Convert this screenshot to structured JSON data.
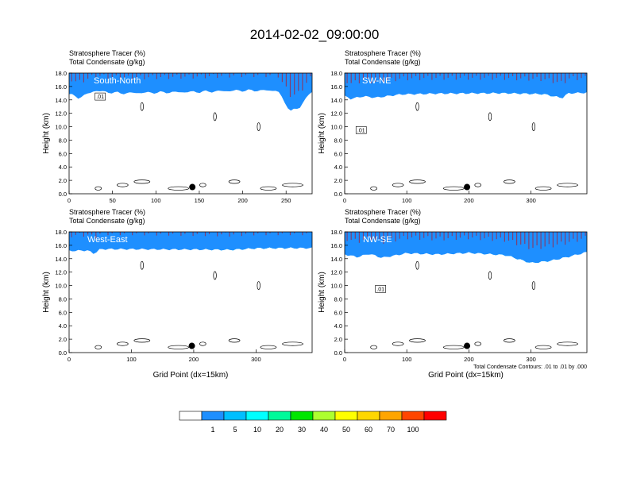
{
  "title": "2014-02-02_09:00:00",
  "panel_header_line1": "Stratosphere Tracer   (%)",
  "panel_header_line2": "Total Condensate   (g/kg)",
  "ylabel": "Height (km)",
  "xlabel": "Grid Point (dx=15km)",
  "contour_note": "Total Condensate Contours: .01 to .01 by .000",
  "contour_label": ".01",
  "colorbar": {
    "colors": [
      "#ffffff",
      "#1e8fff",
      "#00bfff",
      "#00ffff",
      "#00fa9a",
      "#00e600",
      "#adff2f",
      "#ffff00",
      "#ffd700",
      "#ffa500",
      "#ff4500",
      "#ff0000"
    ],
    "labels": [
      "1",
      "5",
      "10",
      "20",
      "30",
      "40",
      "50",
      "60",
      "70",
      "100"
    ]
  },
  "chart_data": [
    {
      "type": "heatmap",
      "name": "South-North",
      "label": "South-North",
      "x_ticks": [
        0,
        50,
        100,
        150,
        200,
        250
      ],
      "xlim": [
        0,
        280
      ],
      "y_ticks": [
        "0.0",
        "2.0",
        "4.0",
        "6.0",
        "8.0",
        "10.0",
        "12.0",
        "14.0",
        "16.0",
        "18.0"
      ],
      "ylim": [
        0,
        18
      ],
      "tracer_base_km": [
        {
          "x": 0,
          "h": 14.9
        },
        {
          "x": 5,
          "h": 14.6
        },
        {
          "x": 10,
          "h": 14.3
        },
        {
          "x": 20,
          "h": 14.8
        },
        {
          "x": 30,
          "h": 15.4
        },
        {
          "x": 40,
          "h": 15.2
        },
        {
          "x": 60,
          "h": 15.0
        },
        {
          "x": 100,
          "h": 15.1
        },
        {
          "x": 150,
          "h": 15.2
        },
        {
          "x": 200,
          "h": 15.4
        },
        {
          "x": 240,
          "h": 15.4
        },
        {
          "x": 255,
          "h": 12.3
        },
        {
          "x": 265,
          "h": 12.8
        },
        {
          "x": 275,
          "h": 14.6
        },
        {
          "x": 280,
          "h": 15.2
        }
      ],
      "marker_x": 142,
      "marker_h": 1.0
    },
    {
      "type": "heatmap",
      "name": "SW-NE",
      "label": "SW-NE",
      "x_ticks": [
        0,
        100,
        200,
        300
      ],
      "xlim": [
        0,
        390
      ],
      "y_ticks": [
        "0.0",
        "2.0",
        "4.0",
        "6.0",
        "8.0",
        "10.0",
        "12.0",
        "14.0",
        "16.0",
        "18.0"
      ],
      "ylim": [
        0,
        18
      ],
      "tracer_base_km": [
        {
          "x": 0,
          "h": 14.6
        },
        {
          "x": 10,
          "h": 14.2
        },
        {
          "x": 30,
          "h": 14.6
        },
        {
          "x": 50,
          "h": 14.4
        },
        {
          "x": 90,
          "h": 14.9
        },
        {
          "x": 150,
          "h": 15.0
        },
        {
          "x": 250,
          "h": 15.0
        },
        {
          "x": 320,
          "h": 14.8
        },
        {
          "x": 350,
          "h": 14.2
        },
        {
          "x": 360,
          "h": 14.9
        },
        {
          "x": 390,
          "h": 15.0
        }
      ],
      "marker_x": 197,
      "marker_h": 1.0
    },
    {
      "type": "heatmap",
      "name": "West-East",
      "label": "West-East",
      "x_ticks": [
        0,
        100,
        200,
        300
      ],
      "xlim": [
        0,
        390
      ],
      "y_ticks": [
        "0.0",
        "2.0",
        "4.0",
        "6.0",
        "8.0",
        "10.0",
        "12.0",
        "14.0",
        "16.0",
        "18.0"
      ],
      "ylim": [
        0,
        18
      ],
      "tracer_base_km": [
        {
          "x": 0,
          "h": 15.2
        },
        {
          "x": 30,
          "h": 15.3
        },
        {
          "x": 40,
          "h": 14.8
        },
        {
          "x": 50,
          "h": 15.5
        },
        {
          "x": 100,
          "h": 15.5
        },
        {
          "x": 200,
          "h": 15.4
        },
        {
          "x": 260,
          "h": 15.3
        },
        {
          "x": 300,
          "h": 15.5
        },
        {
          "x": 390,
          "h": 15.5
        }
      ],
      "marker_x": 197,
      "marker_h": 1.0
    },
    {
      "type": "heatmap",
      "name": "NW-SE",
      "label": "NW-SE",
      "x_ticks": [
        0,
        100,
        200,
        300
      ],
      "xlim": [
        0,
        390
      ],
      "y_ticks": [
        "0.0",
        "2.0",
        "4.0",
        "6.0",
        "8.0",
        "10.0",
        "12.0",
        "14.0",
        "16.0",
        "18.0"
      ],
      "ylim": [
        0,
        18
      ],
      "tracer_base_km": [
        {
          "x": 0,
          "h": 14.7
        },
        {
          "x": 20,
          "h": 14.3
        },
        {
          "x": 40,
          "h": 14.8
        },
        {
          "x": 60,
          "h": 14.2
        },
        {
          "x": 100,
          "h": 14.9
        },
        {
          "x": 150,
          "h": 14.7
        },
        {
          "x": 200,
          "h": 14.9
        },
        {
          "x": 260,
          "h": 14.5
        },
        {
          "x": 300,
          "h": 13.3
        },
        {
          "x": 330,
          "h": 13.6
        },
        {
          "x": 360,
          "h": 14.2
        },
        {
          "x": 390,
          "h": 14.9
        }
      ],
      "marker_x": 197,
      "marker_h": 1.0
    }
  ]
}
